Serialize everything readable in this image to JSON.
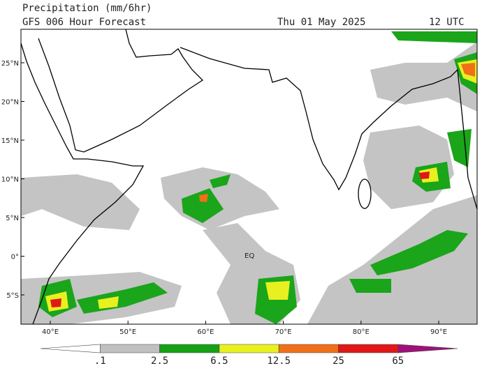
{
  "header": {
    "title": "Precipitation (mm/6hr)",
    "model": "GFS 006 Hour Forecast",
    "date": "Thu 01 May 2025",
    "time": "12 UTC"
  },
  "map": {
    "lat_labels": [
      "25°N",
      "20°N",
      "15°N",
      "10°N",
      "5°N",
      "0°",
      "5°S"
    ],
    "lon_labels": [
      "40°E",
      "50°E",
      "60°E",
      "70°E",
      "80°E",
      "90°E"
    ],
    "equator_label": "EQ"
  },
  "colorbar": {
    "labels": [
      ".1",
      "2.5",
      "6.5",
      "12.5",
      "25",
      "65"
    ],
    "colors": [
      "#ffffff",
      "#c0c0c0",
      "#16a016",
      "#e8f020",
      "#f07018",
      "#e01818",
      "#a0107a"
    ]
  }
}
